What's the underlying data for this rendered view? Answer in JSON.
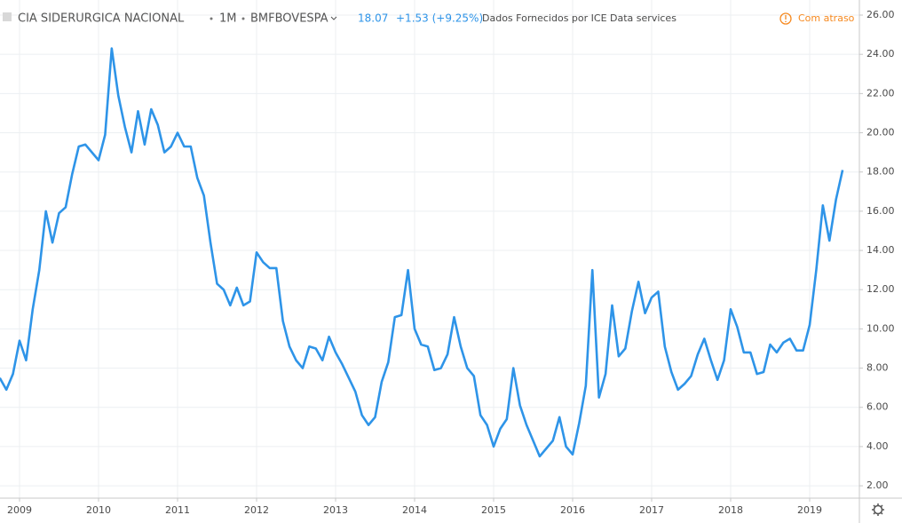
{
  "chart_data": {
    "type": "line",
    "title": "CIA SIDERURGICA NACIONAL",
    "interval": "1M",
    "exchange": "BMFBOVESPA",
    "last_price": "18.07",
    "change": "+1.53 (+9.25%)",
    "source": "Dados Fornecidos por ICE Data services",
    "status": "Com atraso",
    "categories": [
      null,
      null,
      null,
      "2009",
      null,
      null,
      null,
      null,
      null,
      null,
      null,
      null,
      null,
      null,
      null,
      "2010",
      null,
      null,
      null,
      null,
      null,
      null,
      null,
      null,
      null,
      null,
      null,
      "2011",
      null,
      null,
      null,
      null,
      null,
      null,
      null,
      null,
      null,
      null,
      null,
      "2012",
      null,
      null,
      null,
      null,
      null,
      null,
      null,
      null,
      null,
      null,
      null,
      "2013",
      null,
      null,
      null,
      null,
      null,
      null,
      null,
      null,
      null,
      null,
      null,
      "2014",
      null,
      null,
      null,
      null,
      null,
      null,
      null,
      null,
      null,
      null,
      null,
      "2015",
      null,
      null,
      null,
      null,
      null,
      null,
      null,
      null,
      null,
      null,
      null,
      "2016",
      null,
      null,
      null,
      null,
      null,
      null,
      null,
      null,
      null,
      null,
      null,
      "2017",
      null,
      null,
      null,
      null,
      null,
      null,
      null,
      null,
      null,
      null,
      null,
      "2018",
      null,
      null,
      null,
      null,
      null,
      null,
      null,
      null,
      null,
      null,
      null,
      "2019",
      null,
      null,
      null,
      null,
      null
    ],
    "series": [
      {
        "color": "#2e94e8",
        "values": [
          7.5,
          6.9,
          7.7,
          9.4,
          8.4,
          11.0,
          13.0,
          16.0,
          14.4,
          15.9,
          16.2,
          17.9,
          19.3,
          19.4,
          19.0,
          18.6,
          19.9,
          24.3,
          21.9,
          20.3,
          19.0,
          21.1,
          19.4,
          21.2,
          20.4,
          19.0,
          19.3,
          20.0,
          19.3,
          19.3,
          17.7,
          16.8,
          14.4,
          12.3,
          12.0,
          11.2,
          12.1,
          11.2,
          11.4,
          13.9,
          13.4,
          13.1,
          13.1,
          10.4,
          9.1,
          8.4,
          8.0,
          9.1,
          9.0,
          8.4,
          9.6,
          8.8,
          8.2,
          7.5,
          6.8,
          5.6,
          5.1,
          5.5,
          7.3,
          8.3,
          10.6,
          10.7,
          13.0,
          10.0,
          9.2,
          9.1,
          7.9,
          8.0,
          8.7,
          10.6,
          9.1,
          8.0,
          7.6,
          5.6,
          5.1,
          4.0,
          4.9,
          5.4,
          8.0,
          6.1,
          5.1,
          4.3,
          3.5,
          3.9,
          4.3,
          5.5,
          4.0,
          3.6,
          5.2,
          7.1,
          13.0,
          6.5,
          7.7,
          11.2,
          8.6,
          9.0,
          10.9,
          12.4,
          10.8,
          11.6,
          11.9,
          9.1,
          7.8,
          6.9,
          7.2,
          7.6,
          8.7,
          9.5,
          8.4,
          7.4,
          8.4,
          11.0,
          10.1,
          8.8,
          8.8,
          7.7,
          7.8,
          9.2,
          8.8,
          9.3,
          9.5,
          8.9,
          8.9,
          10.2,
          13.0,
          16.3,
          14.5,
          16.6,
          18.1
        ]
      }
    ],
    "ylim": [
      1.37,
      26.77
    ],
    "yticks": [
      {
        "value": 2,
        "label": "2.00"
      },
      {
        "value": 4,
        "label": "4.00"
      },
      {
        "value": 6,
        "label": "6.00"
      },
      {
        "value": 8,
        "label": "8.00"
      },
      {
        "value": 10,
        "label": "10.00"
      },
      {
        "value": 12,
        "label": "12.00"
      },
      {
        "value": 14,
        "label": "14.00"
      },
      {
        "value": 16,
        "label": "16.00"
      },
      {
        "value": 18,
        "label": "18.00"
      },
      {
        "value": 20,
        "label": "20.00"
      },
      {
        "value": 22,
        "label": "22.00"
      },
      {
        "value": 24,
        "label": "24.00"
      },
      {
        "value": 26,
        "label": "26.00"
      }
    ],
    "grid": true
  }
}
